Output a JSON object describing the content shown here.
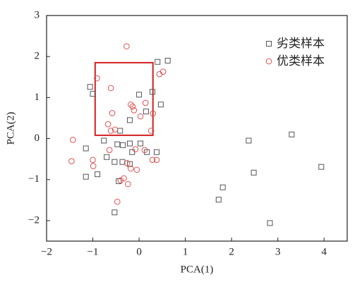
{
  "chart_data": {
    "type": "scatter",
    "x_label": "PCA(1)",
    "y_label": "PCA(2)",
    "xlim": [
      -2,
      4.5
    ],
    "ylim": [
      -2.5,
      3
    ],
    "xticks": [
      {
        "value": -2,
        "label": "−2"
      },
      {
        "value": -1,
        "label": "−1"
      },
      0,
      1,
      2,
      3,
      4
    ],
    "yticks": [
      {
        "value": -2,
        "label": "−2"
      },
      {
        "value": -1,
        "label": "−1"
      },
      0,
      1,
      2,
      3
    ],
    "legend": "upper right",
    "highlight_box": {
      "x": [
        -0.95,
        0.3
      ],
      "y": [
        0.08,
        1.85
      ],
      "color": "#d42020"
    },
    "series": [
      {
        "name": "劣类样本",
        "marker": "square",
        "color": "#555555",
        "x": [
          0.62,
          0.4,
          -1.06,
          -1.0,
          0.0,
          0.29,
          0.47,
          0.15,
          -0.2,
          -0.41,
          -0.76,
          -1.15,
          -0.47,
          -0.35,
          -0.2,
          0.03,
          -0.15,
          0.17,
          0.38,
          -0.7,
          -0.53,
          -0.36,
          -0.2,
          -0.9,
          -1.15,
          -0.44,
          -0.53,
          2.37,
          3.3,
          2.48,
          3.94,
          1.81,
          1.72,
          2.83
        ],
        "values": [
          1.9,
          1.87,
          1.26,
          1.09,
          1.07,
          1.14,
          0.83,
          0.66,
          0.45,
          0.19,
          -0.05,
          -0.24,
          -0.14,
          -0.16,
          -0.12,
          -0.12,
          -0.33,
          -0.33,
          -0.33,
          -0.45,
          -0.57,
          -0.57,
          -0.62,
          -0.87,
          -0.93,
          -1.04,
          -1.8,
          -0.05,
          0.1,
          -0.83,
          -0.69,
          -1.19,
          -1.49,
          -2.06
        ]
      },
      {
        "name": "优类样本",
        "marker": "circle",
        "color": "#e05050",
        "x": [
          -0.27,
          0.52,
          0.44,
          -0.91,
          -0.61,
          -0.18,
          -0.11,
          -0.14,
          0.14,
          0.03,
          -0.58,
          0.3,
          -0.67,
          -0.61,
          -0.52,
          0.26,
          -1.43,
          -0.64,
          -1.46,
          -1.0,
          -0.99,
          -0.08,
          0.12,
          -0.26,
          -0.18,
          -0.05,
          0.29,
          0.38,
          -0.33,
          -0.4,
          -0.24,
          -0.47
        ],
        "values": [
          2.25,
          1.63,
          1.57,
          1.47,
          1.23,
          0.83,
          0.69,
          0.78,
          0.87,
          0.54,
          0.62,
          0.61,
          0.35,
          0.19,
          0.22,
          0.19,
          -0.03,
          -0.28,
          -0.55,
          -0.52,
          -0.67,
          -0.26,
          -0.28,
          -0.6,
          -0.73,
          -0.76,
          -0.52,
          -0.52,
          -0.97,
          -1.02,
          -1.11,
          -1.54
        ]
      }
    ]
  }
}
